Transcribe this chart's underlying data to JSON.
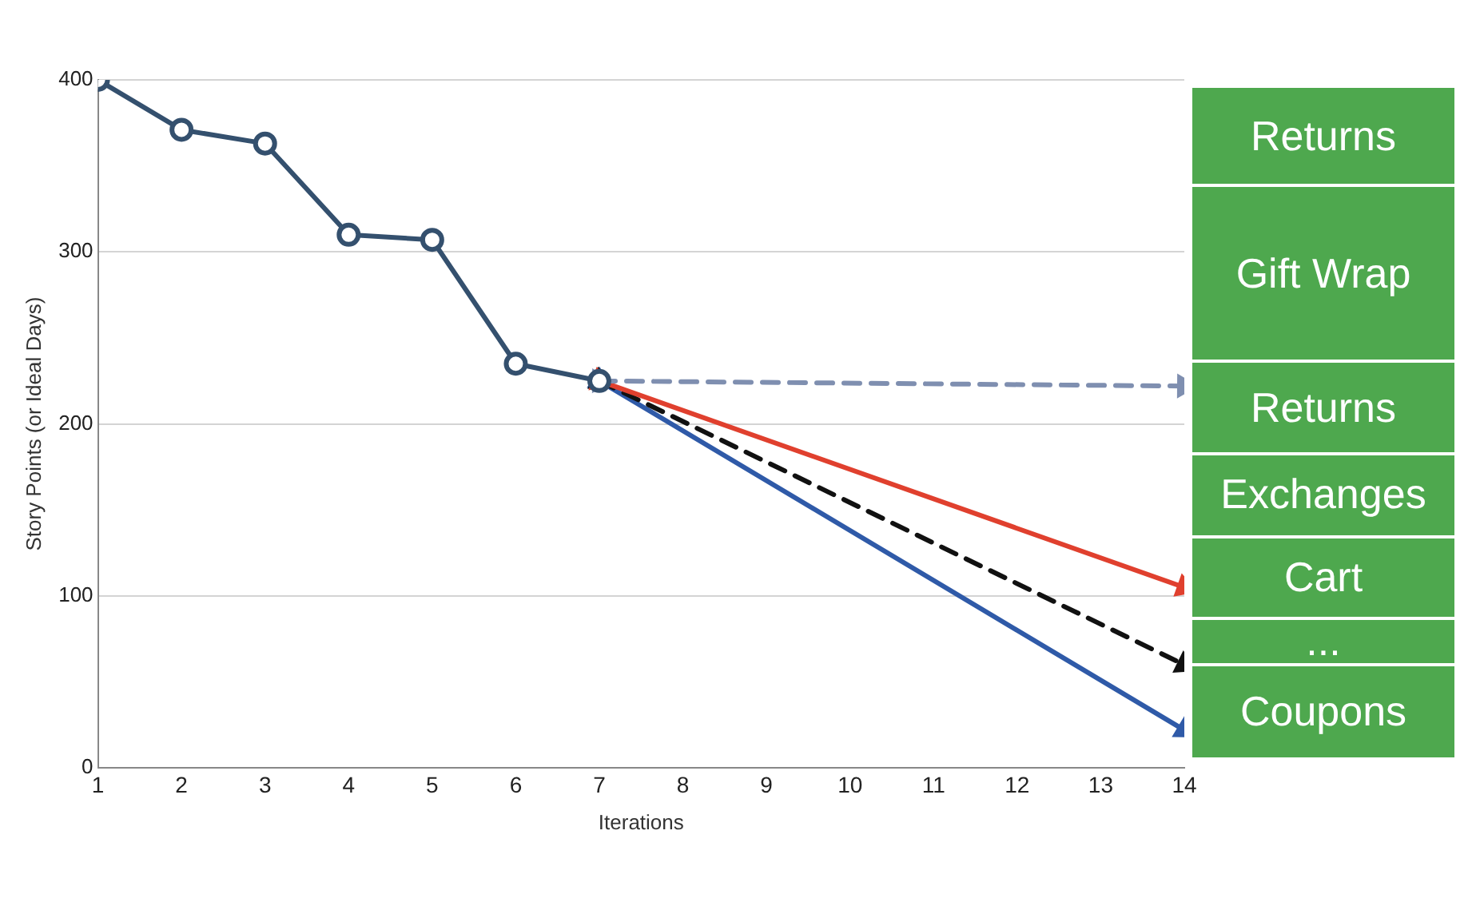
{
  "chart_data": [
    {
      "type": "line",
      "xlabel": "Iterations",
      "ylabel": "Story Points (or Ideal Days)",
      "xlim": [
        1,
        14
      ],
      "xticks": [
        1,
        2,
        3,
        4,
        5,
        6,
        7,
        8,
        9,
        10,
        11,
        12,
        13,
        14
      ],
      "ylim": [
        0,
        400
      ],
      "yticks": [
        0,
        100,
        200,
        300,
        400
      ],
      "grid": "y",
      "legend": false,
      "series": [
        {
          "x": [
            1,
            2,
            3,
            4,
            5,
            6,
            7
          ],
          "values": [
            400,
            371,
            363,
            310,
            307,
            235,
            225
          ],
          "color": "#34506e",
          "marker": "circle",
          "line_style": "solid"
        },
        {
          "x": [
            7,
            14
          ],
          "values": [
            225,
            222
          ],
          "color": "#7f8fb0",
          "marker": "triangle",
          "line_style": "dashed"
        },
        {
          "x": [
            7,
            14
          ],
          "values": [
            225,
            105
          ],
          "color": "#e0402e",
          "marker": "triangle",
          "line_style": "solid"
        },
        {
          "x": [
            7,
            14
          ],
          "values": [
            225,
            60
          ],
          "color": "#111111",
          "marker": "triangle",
          "line_style": "dashed"
        },
        {
          "x": [
            7,
            14
          ],
          "values": [
            225,
            22
          ],
          "color": "#2f5aa8",
          "marker": "triangle",
          "line_style": "solid"
        }
      ]
    },
    {
      "type": "other",
      "annotations": [
        "Returns",
        "Gift Wrap",
        "Returns",
        "Exchanges",
        "Cart",
        "...",
        "Coupons"
      ]
    }
  ]
}
